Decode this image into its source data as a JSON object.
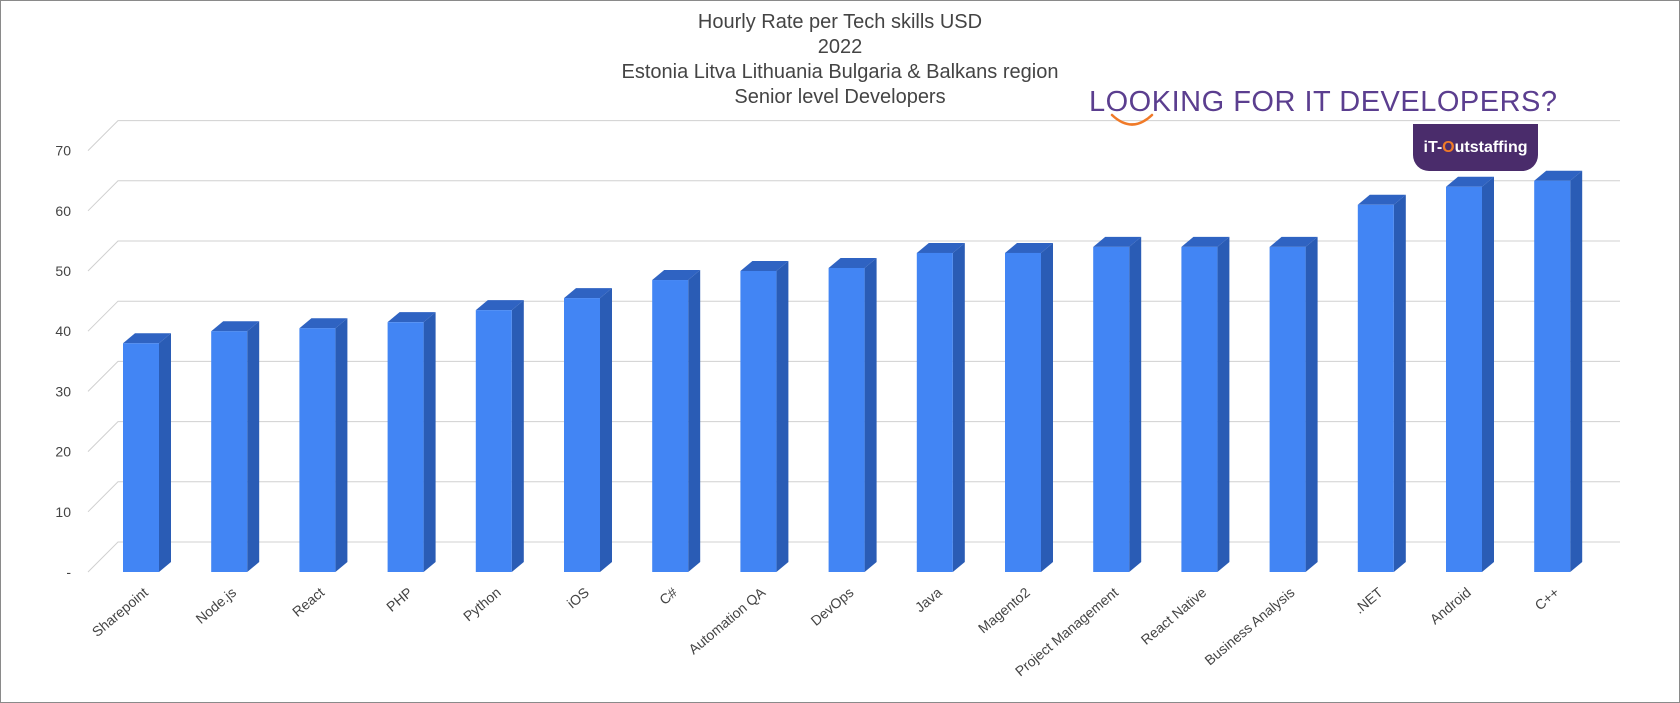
{
  "chart_data": {
    "type": "bar",
    "title_lines": [
      "Hourly Rate per Tech skills USD",
      "2022",
      "Estonia Litva Lithuania Bulgaria & Balkans region",
      "Senior level Developers"
    ],
    "categories": [
      "Sharepoint",
      "Node.js",
      "React",
      "PHP",
      "Python",
      "iOS",
      "C#",
      "Automation QA",
      "DevOps",
      "Java",
      "Magento2",
      "Project Management",
      "React Native",
      "Business Analysis",
      ".NET",
      "Android",
      "C++"
    ],
    "values": [
      38,
      40,
      40.5,
      41.5,
      43.5,
      45.5,
      48.5,
      50,
      50.5,
      53,
      53,
      54,
      54,
      54,
      61,
      64,
      65
    ],
    "y_ticks": [
      "-",
      "10",
      "20",
      "30",
      "40",
      "50",
      "60",
      "70"
    ],
    "ylim": [
      0,
      70
    ],
    "grid": true,
    "bar_color": "#4285f4",
    "bar_side_color": "#2a5cb5",
    "bar_top_color": "#2f63c2"
  },
  "promo": {
    "headline": "LOOKING FOR IT DEVELOPERS?",
    "logo_prefix": "iT-",
    "logo_accent": "O",
    "logo_suffix": "utstaffing",
    "headline_color": "#5b3e8f",
    "badge_color": "#4a2c6b",
    "accent_color": "#f07a28"
  }
}
